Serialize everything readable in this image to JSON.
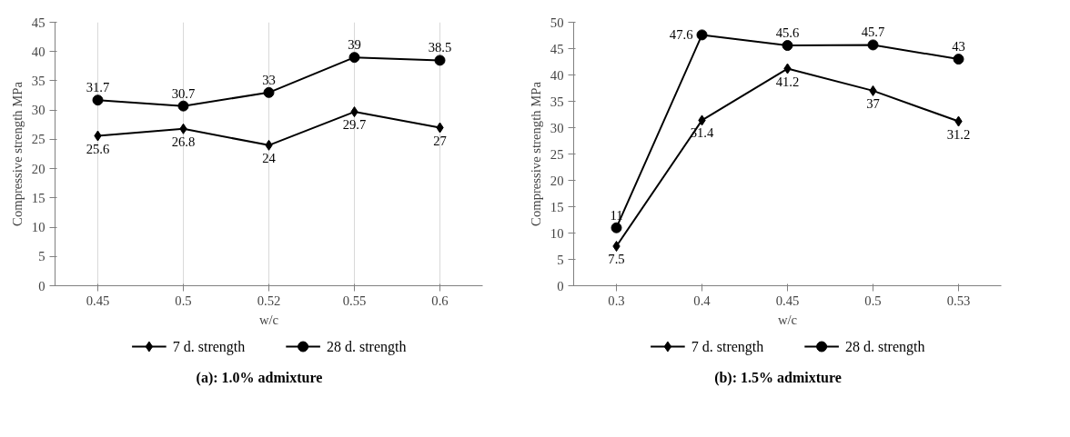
{
  "chart_data": [
    {
      "type": "line",
      "title": "(a): 1.0% admixture",
      "xlabel": "w/c",
      "ylabel": "Compressive strength MPa",
      "categories": [
        "0.45",
        "0.5",
        "0.52",
        "0.55",
        "0.6"
      ],
      "ylim": [
        0,
        45
      ],
      "yticks": [
        0,
        5,
        10,
        15,
        20,
        25,
        30,
        35,
        40,
        45
      ],
      "grid": "x",
      "legend": "bottom",
      "data_labels": true,
      "series": [
        {
          "name": "7 d. strength",
          "color": "#000000",
          "marker": "diamond",
          "values": [
            25.6,
            26.8,
            24,
            29.7,
            27
          ]
        },
        {
          "name": "28 d. strength",
          "color": "#000000",
          "marker": "circle",
          "values": [
            31.7,
            30.7,
            33,
            39,
            38.5
          ]
        }
      ]
    },
    {
      "type": "line",
      "title": "(b): 1.5% admixture",
      "xlabel": "w/c",
      "ylabel": "Compressive strength MPa",
      "categories": [
        "0.3",
        "0.4",
        "0.45",
        "0.5",
        "0.53"
      ],
      "ylim": [
        0,
        50
      ],
      "yticks": [
        0,
        5,
        10,
        15,
        20,
        25,
        30,
        35,
        40,
        45,
        50
      ],
      "grid": false,
      "legend": "bottom",
      "data_labels": true,
      "series": [
        {
          "name": "7 d. strength",
          "color": "#000000",
          "marker": "diamond",
          "values": [
            7.5,
            31.4,
            41.2,
            37,
            31.2
          ]
        },
        {
          "name": "28 d. strength",
          "color": "#000000",
          "marker": "circle",
          "values": [
            11,
            47.6,
            45.6,
            45.7,
            43
          ]
        }
      ]
    }
  ]
}
